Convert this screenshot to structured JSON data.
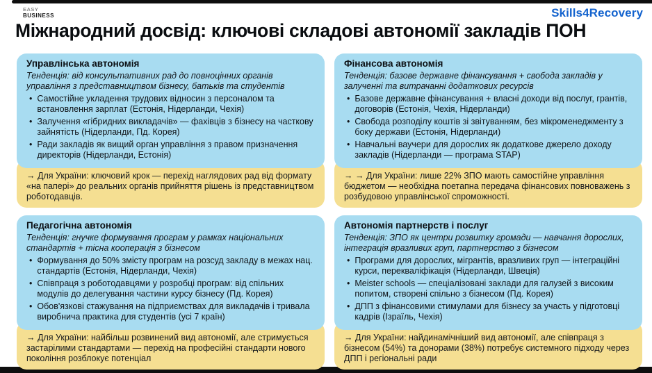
{
  "header": {
    "logo_line1": "EASY",
    "logo_line2": "BUSINESS",
    "brand": "Skills4Recovery",
    "title": "Міжнародний досвід: ключові складові автономії закладів ПОН"
  },
  "colors": {
    "card_blue": "#a8dcf1",
    "note_yellow": "#f5df92",
    "brand_blue": "#1363ce",
    "bar_black": "#0e0e0e"
  },
  "bullet_char": "•",
  "cards": [
    {
      "title": "Управлінська автономія",
      "trend": "Тенденція: від консультативних рад до повноцінних органів управління з представництвом бізнесу, батьків та студентів",
      "bullets": [
        "Самостійне укладення трудових відносин з персоналом та встановлення зарплат (Естонія, Нідерланди, Чехія)",
        "Залучення «гібридних викладачів» — фахівців з бізнесу на часткову зайнятість (Нідерланди, Пд. Корея)",
        "Ради закладів як вищий орган управління з правом призначення директорів (Нідерланди, Естонія)"
      ],
      "ukraine": "→ Для України: ключовий крок — перехід наглядових рад від формату «на папері» до реальних органів прийняття рішень із представництвом роботодавців."
    },
    {
      "title": "Фінансова автономія",
      "trend": "Тенденція: базове державне фінансування + свобода закладів у залученні та витрачанні додаткових ресурсів",
      "bullets": [
        "Базове державне фінансування + власні доходи від послуг, грантів, договорів (Естонія, Чехія, Нідерланди)",
        "Свобода розподілу коштів зі звітуванням, без мікроменеджменту з боку держави (Естонія, Нідерланди)",
        "Навчальні ваучери для дорослих як додаткове джерело доходу закладів (Нідерланди — програма STAP)"
      ],
      "ukraine": "→ → Для України: лише 22% ЗПО мають самостійне управління бюджетом — необхідна поетапна передача фінансових повноважень з розбудовою управлінської спроможності."
    },
    {
      "title": "Педагогічна автономія",
      "trend": "Тенденція: гнучке формування програм у рамках національних стандартів + тісна кооперація з бізнесом",
      "bullets": [
        "Формування до 50% змісту програм на розсуд закладу в межах нац. стандартів (Естонія, Нідерланди, Чехія)",
        "Співпраця з роботодавцями у розробці програм: від спільних модулів до делегування частини курсу бізнесу (Пд. Корея)",
        "Обов'язкові стажування на підприємствах для викладачів і тривала виробнича практика для студентів (усі 7 країн)"
      ],
      "ukraine": "→ Для України: найбільш розвинений вид автономії, але стримується застарілими стандартами — перехід на професійні стандарти нового покоління розблокує потенціал"
    },
    {
      "title": "Автономія партнерств і послуг",
      "trend": "Тенденція: ЗПО як центри розвитку громади — навчання дорослих, інтеграція вразливих груп, партнерство з бізнесом",
      "bullets": [
        "Програми для дорослих, мігрантів, вразливих груп — інтеграційні курси, перекваліфікація (Нідерланди, Швеція)",
        "Meister schools — спеціалізовані заклади для галузей з високим попитом, створені спільно з бізнесом (Пд. Корея)",
        "ДПП з фінансовими стимулами для бізнесу за участь у підготовці кадрів (Ізраїль, Чехія)"
      ],
      "ukraine": "→ Для України: найдинамічніший вид автономії, але співпраця з бізнесом (54%) та донорами (38%) потребує системного підходу через ДПП і регіональні ради"
    }
  ]
}
